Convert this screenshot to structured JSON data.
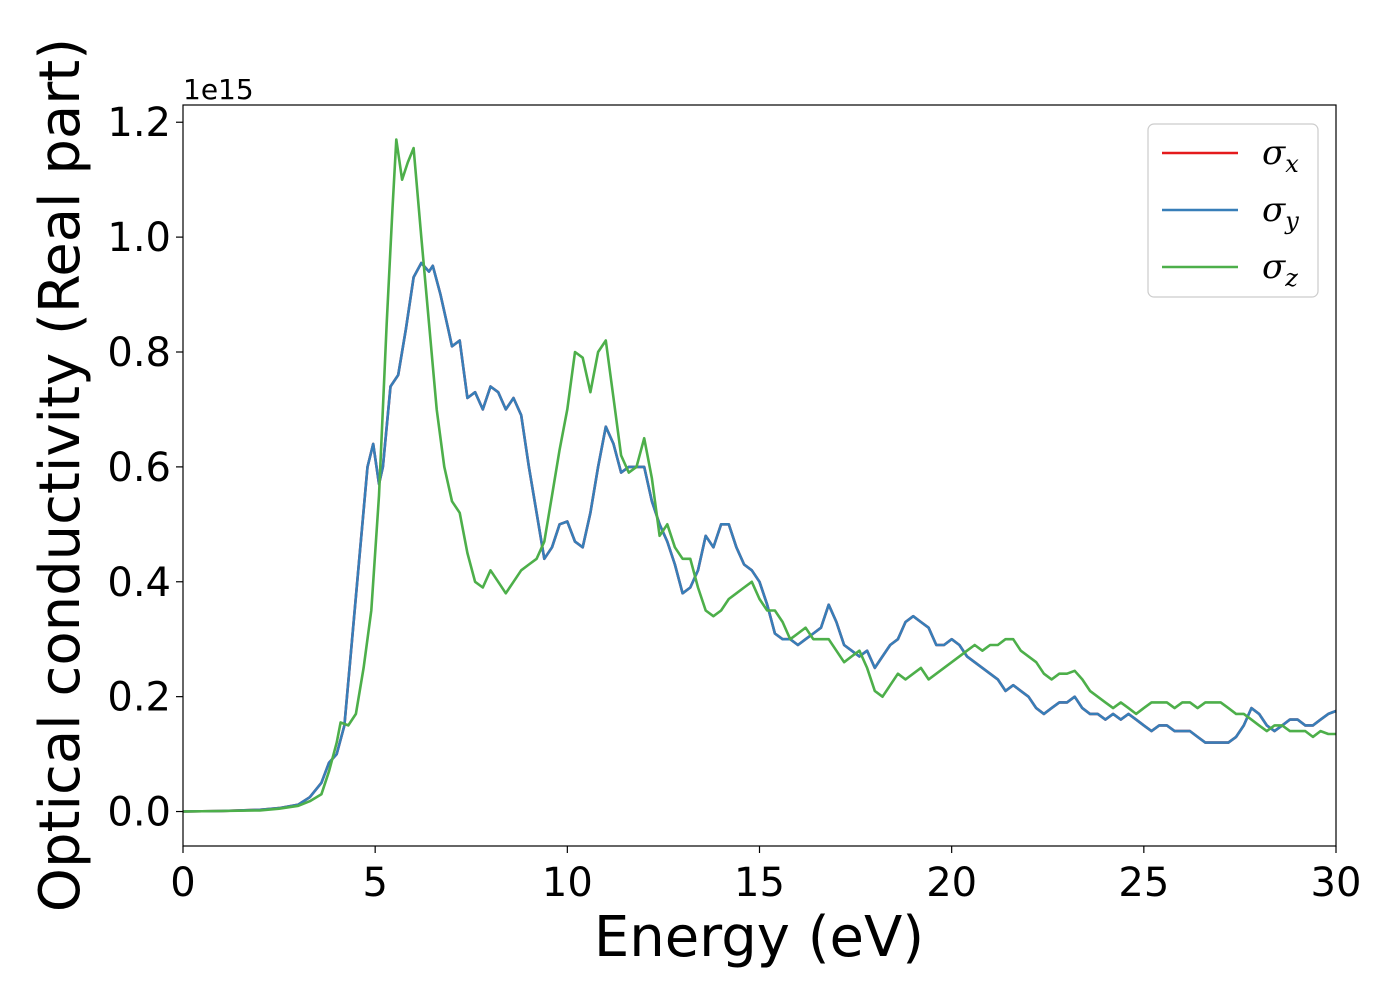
{
  "chart_data": {
    "type": "line",
    "xlabel": "Energy (eV)",
    "ylabel": "Optical conductivity (Real part)",
    "y_offset_label": "1e15",
    "xlim": [
      0,
      30
    ],
    "ylim": [
      -0.06,
      1.23
    ],
    "x_ticks": [
      0,
      5,
      10,
      15,
      20,
      25,
      30
    ],
    "x_tick_labels": [
      "0",
      "5",
      "10",
      "15",
      "20",
      "25",
      "30"
    ],
    "y_ticks": [
      0.0,
      0.2,
      0.4,
      0.6,
      0.8,
      1.0,
      1.2
    ],
    "y_tick_labels": [
      "0.0",
      "0.2",
      "0.4",
      "0.6",
      "0.8",
      "1.0",
      "1.2"
    ],
    "grid": false,
    "legend_position": "upper-right",
    "series": [
      {
        "name": "σx",
        "symbol": "σ",
        "subscript": "x",
        "color": "#e41a1c",
        "x": [
          0,
          1,
          2,
          2.5,
          3,
          3.3,
          3.6,
          3.8,
          4.0,
          4.2,
          4.4,
          4.6,
          4.8,
          4.95,
          5.1,
          5.2,
          5.4,
          5.6,
          5.8,
          6.0,
          6.2,
          6.4,
          6.5,
          6.7,
          6.9,
          7.0,
          7.2,
          7.4,
          7.6,
          7.8,
          8.0,
          8.2,
          8.4,
          8.6,
          8.8,
          9.0,
          9.2,
          9.4,
          9.6,
          9.8,
          10.0,
          10.2,
          10.4,
          10.6,
          10.8,
          11.0,
          11.2,
          11.4,
          11.6,
          11.8,
          12.0,
          12.2,
          12.4,
          12.6,
          12.8,
          13.0,
          13.2,
          13.4,
          13.6,
          13.8,
          14.0,
          14.2,
          14.4,
          14.6,
          14.8,
          15.0,
          15.2,
          15.4,
          15.6,
          15.8,
          16.0,
          16.2,
          16.4,
          16.6,
          16.8,
          17.0,
          17.2,
          17.4,
          17.6,
          17.8,
          18.0,
          18.2,
          18.4,
          18.6,
          18.8,
          19.0,
          19.2,
          19.4,
          19.6,
          19.8,
          20.0,
          20.2,
          20.4,
          20.6,
          20.8,
          21.0,
          21.2,
          21.4,
          21.6,
          21.8,
          22.0,
          22.2,
          22.4,
          22.6,
          22.8,
          23.0,
          23.2,
          23.4,
          23.6,
          23.8,
          24.0,
          24.2,
          24.4,
          24.6,
          24.8,
          25.0,
          25.2,
          25.4,
          25.6,
          25.8,
          26.0,
          26.2,
          26.4,
          26.6,
          26.8,
          27.0,
          27.2,
          27.4,
          27.6,
          27.8,
          28.0,
          28.2,
          28.4,
          28.6,
          28.8,
          29.0,
          29.2,
          29.4,
          29.6,
          29.8,
          30.0
        ],
        "y": [
          0,
          0.001,
          0.003,
          0.006,
          0.012,
          0.025,
          0.05,
          0.085,
          0.1,
          0.15,
          0.3,
          0.45,
          0.6,
          0.64,
          0.57,
          0.6,
          0.74,
          0.76,
          0.84,
          0.93,
          0.955,
          0.94,
          0.95,
          0.9,
          0.84,
          0.81,
          0.82,
          0.72,
          0.73,
          0.7,
          0.74,
          0.73,
          0.7,
          0.72,
          0.69,
          0.6,
          0.52,
          0.44,
          0.46,
          0.5,
          0.505,
          0.47,
          0.46,
          0.52,
          0.6,
          0.67,
          0.64,
          0.59,
          0.6,
          0.6,
          0.6,
          0.54,
          0.5,
          0.47,
          0.43,
          0.38,
          0.39,
          0.42,
          0.48,
          0.46,
          0.5,
          0.5,
          0.46,
          0.43,
          0.42,
          0.4,
          0.36,
          0.31,
          0.3,
          0.3,
          0.29,
          0.3,
          0.31,
          0.32,
          0.36,
          0.33,
          0.29,
          0.28,
          0.27,
          0.28,
          0.25,
          0.27,
          0.29,
          0.3,
          0.33,
          0.34,
          0.33,
          0.32,
          0.29,
          0.29,
          0.3,
          0.29,
          0.27,
          0.26,
          0.25,
          0.24,
          0.23,
          0.21,
          0.22,
          0.21,
          0.2,
          0.18,
          0.17,
          0.18,
          0.19,
          0.19,
          0.2,
          0.18,
          0.17,
          0.17,
          0.16,
          0.17,
          0.16,
          0.17,
          0.16,
          0.15,
          0.14,
          0.15,
          0.15,
          0.14,
          0.14,
          0.14,
          0.13,
          0.12,
          0.12,
          0.12,
          0.12,
          0.13,
          0.15,
          0.18,
          0.17,
          0.15,
          0.14,
          0.15,
          0.16,
          0.16,
          0.15,
          0.15,
          0.16,
          0.17,
          0.175
        ]
      },
      {
        "name": "σy",
        "symbol": "σ",
        "subscript": "y",
        "color": "#377eb8",
        "x": [
          0,
          1,
          2,
          2.5,
          3,
          3.3,
          3.6,
          3.8,
          4.0,
          4.2,
          4.4,
          4.6,
          4.8,
          4.95,
          5.1,
          5.2,
          5.4,
          5.6,
          5.8,
          6.0,
          6.2,
          6.4,
          6.5,
          6.7,
          6.9,
          7.0,
          7.2,
          7.4,
          7.6,
          7.8,
          8.0,
          8.2,
          8.4,
          8.6,
          8.8,
          9.0,
          9.2,
          9.4,
          9.6,
          9.8,
          10.0,
          10.2,
          10.4,
          10.6,
          10.8,
          11.0,
          11.2,
          11.4,
          11.6,
          11.8,
          12.0,
          12.2,
          12.4,
          12.6,
          12.8,
          13.0,
          13.2,
          13.4,
          13.6,
          13.8,
          14.0,
          14.2,
          14.4,
          14.6,
          14.8,
          15.0,
          15.2,
          15.4,
          15.6,
          15.8,
          16.0,
          16.2,
          16.4,
          16.6,
          16.8,
          17.0,
          17.2,
          17.4,
          17.6,
          17.8,
          18.0,
          18.2,
          18.4,
          18.6,
          18.8,
          19.0,
          19.2,
          19.4,
          19.6,
          19.8,
          20.0,
          20.2,
          20.4,
          20.6,
          20.8,
          21.0,
          21.2,
          21.4,
          21.6,
          21.8,
          22.0,
          22.2,
          22.4,
          22.6,
          22.8,
          23.0,
          23.2,
          23.4,
          23.6,
          23.8,
          24.0,
          24.2,
          24.4,
          24.6,
          24.8,
          25.0,
          25.2,
          25.4,
          25.6,
          25.8,
          26.0,
          26.2,
          26.4,
          26.6,
          26.8,
          27.0,
          27.2,
          27.4,
          27.6,
          27.8,
          28.0,
          28.2,
          28.4,
          28.6,
          28.8,
          29.0,
          29.2,
          29.4,
          29.6,
          29.8,
          30.0
        ],
        "y": [
          0,
          0.001,
          0.003,
          0.006,
          0.012,
          0.025,
          0.05,
          0.085,
          0.1,
          0.15,
          0.3,
          0.45,
          0.6,
          0.64,
          0.57,
          0.6,
          0.74,
          0.76,
          0.84,
          0.93,
          0.955,
          0.94,
          0.95,
          0.9,
          0.84,
          0.81,
          0.82,
          0.72,
          0.73,
          0.7,
          0.74,
          0.73,
          0.7,
          0.72,
          0.69,
          0.6,
          0.52,
          0.44,
          0.46,
          0.5,
          0.505,
          0.47,
          0.46,
          0.52,
          0.6,
          0.67,
          0.64,
          0.59,
          0.6,
          0.6,
          0.6,
          0.54,
          0.5,
          0.47,
          0.43,
          0.38,
          0.39,
          0.42,
          0.48,
          0.46,
          0.5,
          0.5,
          0.46,
          0.43,
          0.42,
          0.4,
          0.36,
          0.31,
          0.3,
          0.3,
          0.29,
          0.3,
          0.31,
          0.32,
          0.36,
          0.33,
          0.29,
          0.28,
          0.27,
          0.28,
          0.25,
          0.27,
          0.29,
          0.3,
          0.33,
          0.34,
          0.33,
          0.32,
          0.29,
          0.29,
          0.3,
          0.29,
          0.27,
          0.26,
          0.25,
          0.24,
          0.23,
          0.21,
          0.22,
          0.21,
          0.2,
          0.18,
          0.17,
          0.18,
          0.19,
          0.19,
          0.2,
          0.18,
          0.17,
          0.17,
          0.16,
          0.17,
          0.16,
          0.17,
          0.16,
          0.15,
          0.14,
          0.15,
          0.15,
          0.14,
          0.14,
          0.14,
          0.13,
          0.12,
          0.12,
          0.12,
          0.12,
          0.13,
          0.15,
          0.18,
          0.17,
          0.15,
          0.14,
          0.15,
          0.16,
          0.16,
          0.15,
          0.15,
          0.16,
          0.17,
          0.175
        ]
      },
      {
        "name": "σz",
        "symbol": "σ",
        "subscript": "z",
        "color": "#4daf4a",
        "x": [
          0,
          1,
          2,
          2.5,
          3,
          3.3,
          3.6,
          3.8,
          4.0,
          4.1,
          4.3,
          4.5,
          4.7,
          4.9,
          5.1,
          5.3,
          5.45,
          5.55,
          5.7,
          5.85,
          6.0,
          6.2,
          6.4,
          6.6,
          6.8,
          7.0,
          7.2,
          7.4,
          7.6,
          7.8,
          8.0,
          8.2,
          8.4,
          8.6,
          8.8,
          9.0,
          9.2,
          9.4,
          9.6,
          9.8,
          10.0,
          10.2,
          10.4,
          10.6,
          10.8,
          11.0,
          11.2,
          11.4,
          11.6,
          11.8,
          12.0,
          12.2,
          12.4,
          12.6,
          12.8,
          13.0,
          13.2,
          13.4,
          13.6,
          13.8,
          14.0,
          14.2,
          14.4,
          14.6,
          14.8,
          15.0,
          15.2,
          15.4,
          15.6,
          15.8,
          16.0,
          16.2,
          16.4,
          16.6,
          16.8,
          17.0,
          17.2,
          17.4,
          17.6,
          17.8,
          18.0,
          18.2,
          18.4,
          18.6,
          18.8,
          19.0,
          19.2,
          19.4,
          19.6,
          19.8,
          20.0,
          20.2,
          20.4,
          20.6,
          20.8,
          21.0,
          21.2,
          21.4,
          21.6,
          21.8,
          22.0,
          22.2,
          22.4,
          22.6,
          22.8,
          23.0,
          23.2,
          23.4,
          23.6,
          23.8,
          24.0,
          24.2,
          24.4,
          24.6,
          24.8,
          25.0,
          25.2,
          25.4,
          25.6,
          25.8,
          26.0,
          26.2,
          26.4,
          26.6,
          26.8,
          27.0,
          27.2,
          27.4,
          27.6,
          27.8,
          28.0,
          28.2,
          28.4,
          28.6,
          28.8,
          29.0,
          29.2,
          29.4,
          29.6,
          29.8,
          30.0
        ],
        "y": [
          0,
          0.001,
          0.002,
          0.005,
          0.01,
          0.018,
          0.03,
          0.07,
          0.12,
          0.155,
          0.15,
          0.17,
          0.25,
          0.35,
          0.55,
          0.85,
          1.05,
          1.17,
          1.1,
          1.13,
          1.155,
          1.0,
          0.85,
          0.7,
          0.6,
          0.54,
          0.52,
          0.45,
          0.4,
          0.39,
          0.42,
          0.4,
          0.38,
          0.4,
          0.42,
          0.43,
          0.44,
          0.47,
          0.55,
          0.63,
          0.7,
          0.8,
          0.79,
          0.73,
          0.8,
          0.82,
          0.72,
          0.62,
          0.59,
          0.6,
          0.65,
          0.58,
          0.48,
          0.5,
          0.46,
          0.44,
          0.44,
          0.39,
          0.35,
          0.34,
          0.35,
          0.37,
          0.38,
          0.39,
          0.4,
          0.37,
          0.35,
          0.35,
          0.33,
          0.3,
          0.31,
          0.32,
          0.3,
          0.3,
          0.3,
          0.28,
          0.26,
          0.27,
          0.28,
          0.25,
          0.21,
          0.2,
          0.22,
          0.24,
          0.23,
          0.24,
          0.25,
          0.23,
          0.24,
          0.25,
          0.26,
          0.27,
          0.28,
          0.29,
          0.28,
          0.29,
          0.29,
          0.3,
          0.3,
          0.28,
          0.27,
          0.26,
          0.24,
          0.23,
          0.24,
          0.24,
          0.245,
          0.23,
          0.21,
          0.2,
          0.19,
          0.18,
          0.19,
          0.18,
          0.17,
          0.18,
          0.19,
          0.19,
          0.19,
          0.18,
          0.19,
          0.19,
          0.18,
          0.19,
          0.19,
          0.19,
          0.18,
          0.17,
          0.17,
          0.16,
          0.15,
          0.14,
          0.15,
          0.15,
          0.14,
          0.14,
          0.14,
          0.13,
          0.14,
          0.135,
          0.135
        ]
      }
    ]
  }
}
